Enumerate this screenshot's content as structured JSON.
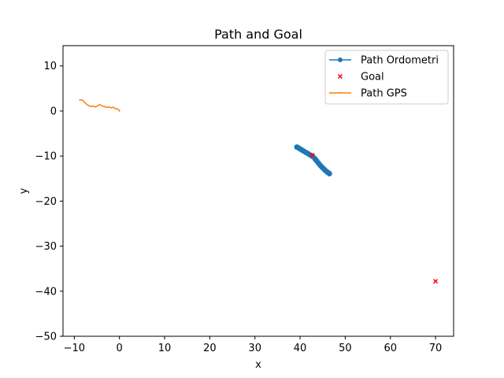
{
  "chart_data": {
    "type": "scatter",
    "title": "Path and Goal",
    "xlabel": "x",
    "ylabel": "y",
    "xlim": [
      -12.5,
      74
    ],
    "ylim": [
      -50,
      14.5
    ],
    "x_ticks": [
      -10,
      0,
      10,
      20,
      30,
      40,
      50,
      60,
      70
    ],
    "y_ticks": [
      10,
      0,
      -10,
      -20,
      -30,
      -40,
      -50
    ],
    "grid": false,
    "legend_position": "top-right",
    "series": [
      {
        "name": "Path Ordometri",
        "kind": "line-marker",
        "color": "#1f77b4",
        "x": [
          39.3,
          39.8,
          40.3,
          40.8,
          41.3,
          41.8,
          42.3,
          42.8,
          43.3,
          43.7,
          44.1,
          44.5,
          44.9,
          45.3,
          45.7,
          46.1,
          46.5
        ],
        "y": [
          -8.0,
          -8.3,
          -8.6,
          -8.9,
          -9.2,
          -9.5,
          -9.8,
          -10.1,
          -10.6,
          -11.1,
          -11.6,
          -12.1,
          -12.5,
          -12.9,
          -13.3,
          -13.6,
          -13.9
        ]
      },
      {
        "name": "Goal",
        "kind": "x-marker",
        "color": "#ff0000",
        "x": [
          42.7,
          70.0
        ],
        "y": [
          -9.8,
          -37.8
        ]
      },
      {
        "name": "Path GPS",
        "kind": "line",
        "color": "#ff7f0e",
        "x": [
          -8.8,
          -8.2,
          -7.8,
          -7.3,
          -6.8,
          -6.3,
          -5.8,
          -5.3,
          -4.8,
          -4.3,
          -3.8,
          -3.3,
          -2.8,
          -2.3,
          -1.8,
          -1.3,
          -0.8,
          -0.3,
          0.0
        ],
        "y": [
          2.5,
          2.4,
          2.0,
          1.5,
          1.2,
          1.0,
          1.1,
          0.9,
          1.2,
          1.4,
          1.1,
          1.0,
          0.8,
          0.9,
          0.7,
          0.8,
          0.5,
          0.4,
          0.0
        ]
      }
    ]
  }
}
